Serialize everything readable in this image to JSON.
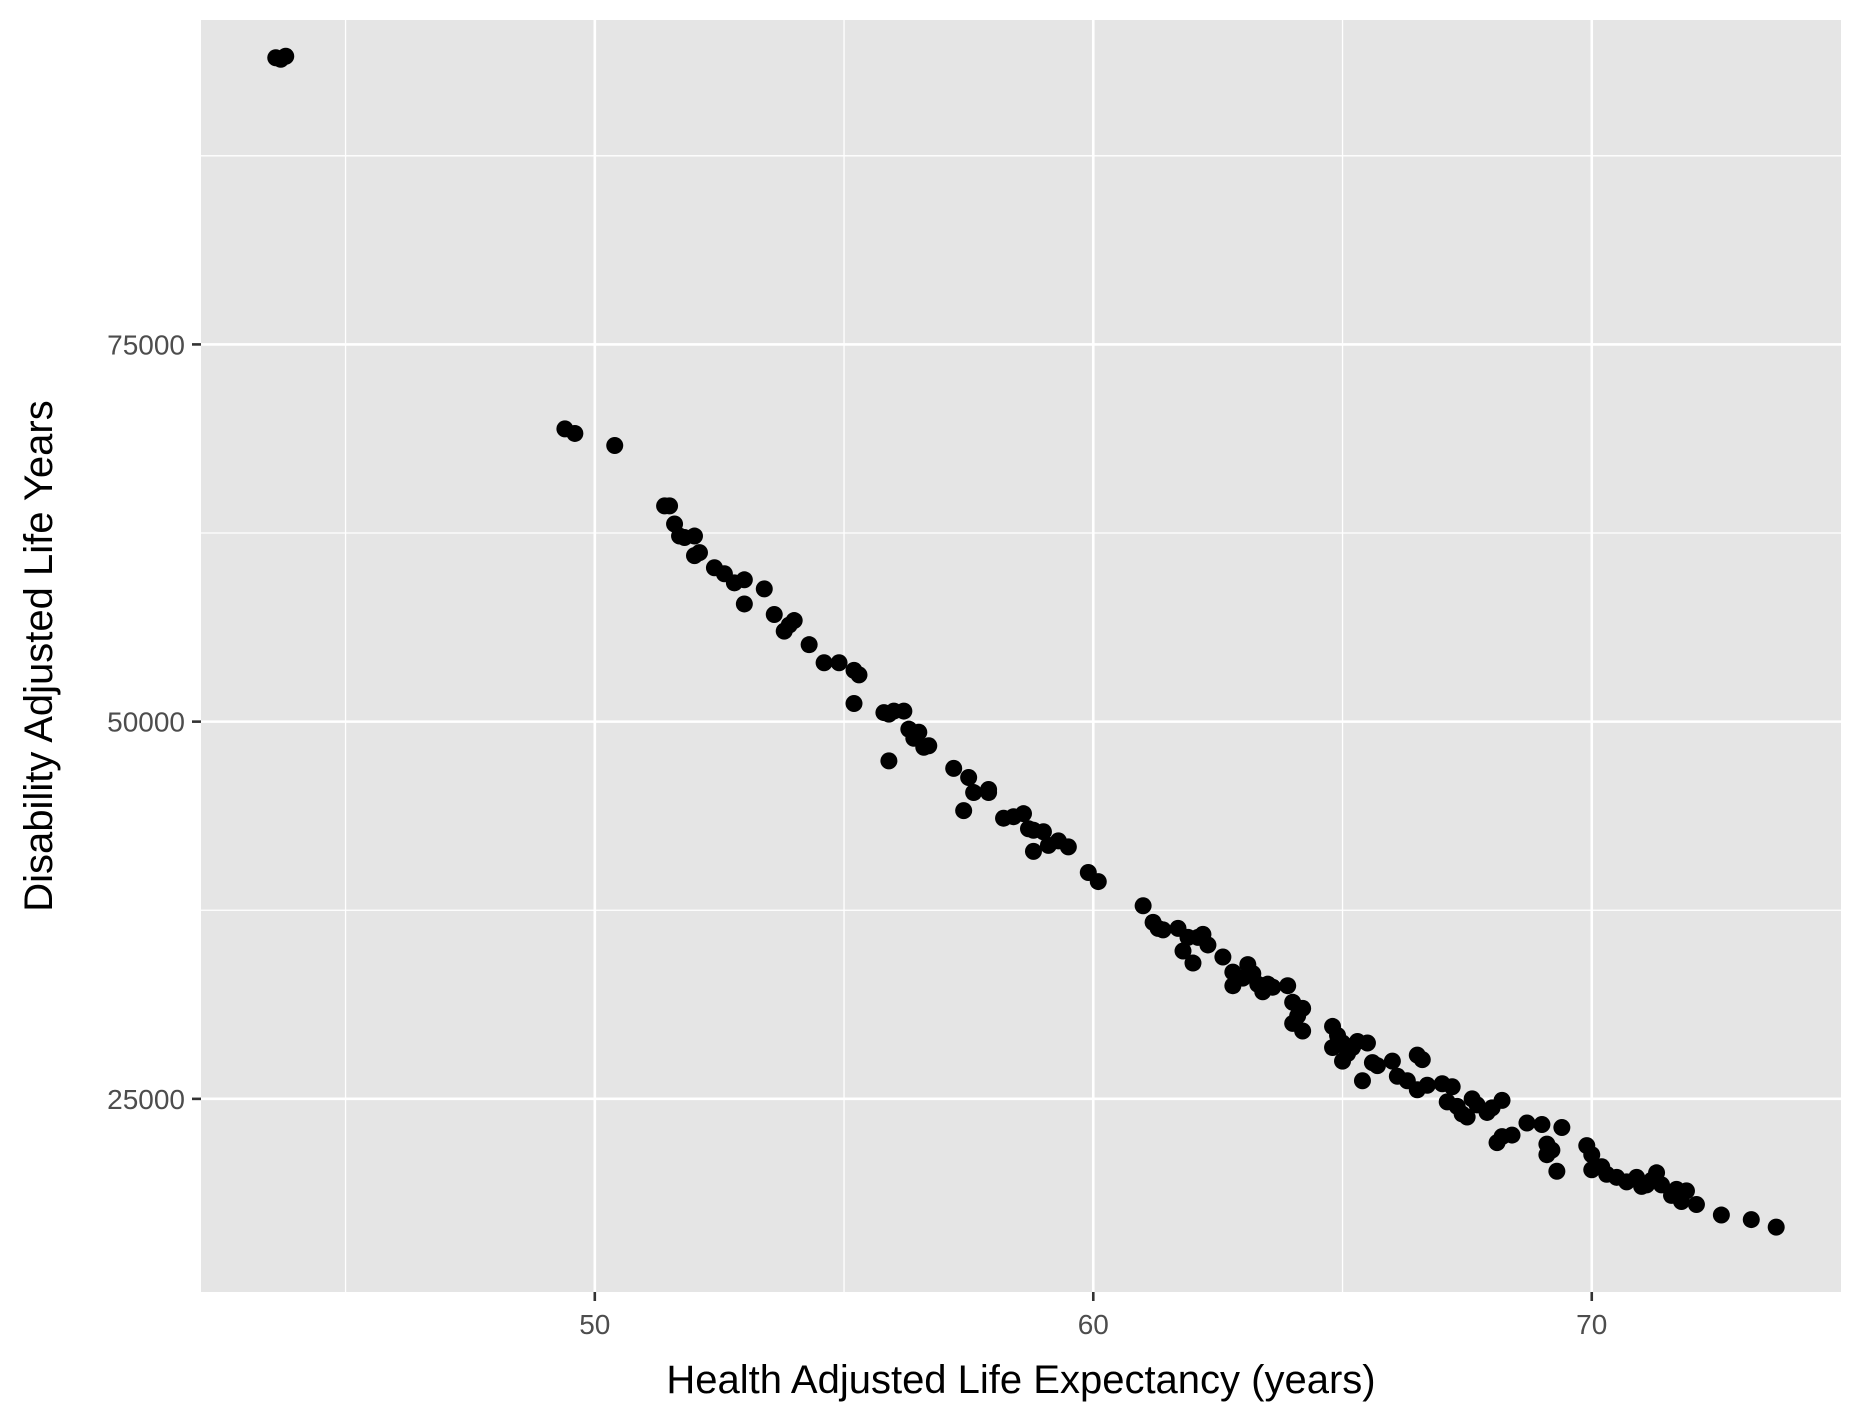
{
  "chart_data": {
    "type": "scatter",
    "title": "",
    "xlabel": "Health Adjusted Life Expectancy (years)",
    "ylabel": "Disability Adjusted Life Years",
    "xlim": [
      42.1,
      75.0
    ],
    "ylim": [
      12200,
      96500
    ],
    "x_ticks": [
      50,
      60,
      70
    ],
    "x_tick_labels": [
      "50",
      "60",
      "70"
    ],
    "x_minor_ticks": [
      45,
      55,
      65
    ],
    "y_ticks": [
      25000,
      50000,
      75000
    ],
    "y_tick_labels": [
      "25000",
      "50000",
      "75000"
    ],
    "y_minor_ticks": [
      37500,
      62500,
      87500
    ],
    "grid": true,
    "legend": "none",
    "point_color": "#000000",
    "panel_background": "#e5e5e5",
    "points": [
      [
        43.6,
        94000
      ],
      [
        43.8,
        94100
      ],
      [
        43.7,
        93900
      ],
      [
        49.4,
        69400
      ],
      [
        49.6,
        69100
      ],
      [
        50.4,
        68300
      ],
      [
        51.4,
        64300
      ],
      [
        51.5,
        64300
      ],
      [
        51.6,
        63100
      ],
      [
        51.7,
        62300
      ],
      [
        51.8,
        62200
      ],
      [
        52.0,
        62300
      ],
      [
        52.0,
        61000
      ],
      [
        52.1,
        61200
      ],
      [
        52.4,
        60200
      ],
      [
        52.6,
        59800
      ],
      [
        52.8,
        59200
      ],
      [
        53.0,
        59400
      ],
      [
        53.0,
        57800
      ],
      [
        53.4,
        58800
      ],
      [
        53.6,
        57100
      ],
      [
        53.8,
        56000
      ],
      [
        53.9,
        56400
      ],
      [
        54.0,
        56700
      ],
      [
        54.3,
        55100
      ],
      [
        54.6,
        53900
      ],
      [
        54.9,
        53900
      ],
      [
        55.2,
        53400
      ],
      [
        55.3,
        53100
      ],
      [
        55.2,
        51200
      ],
      [
        55.8,
        50600
      ],
      [
        55.9,
        50500
      ],
      [
        56.0,
        50700
      ],
      [
        55.9,
        47400
      ],
      [
        56.2,
        50700
      ],
      [
        56.3,
        49500
      ],
      [
        56.4,
        48900
      ],
      [
        56.5,
        49300
      ],
      [
        56.6,
        48300
      ],
      [
        56.7,
        48400
      ],
      [
        57.2,
        46900
      ],
      [
        57.5,
        46300
      ],
      [
        57.4,
        44100
      ],
      [
        57.6,
        45300
      ],
      [
        57.9,
        45500
      ],
      [
        57.9,
        45300
      ],
      [
        58.2,
        43600
      ],
      [
        58.4,
        43700
      ],
      [
        58.6,
        43900
      ],
      [
        58.7,
        42900
      ],
      [
        58.8,
        42800
      ],
      [
        58.8,
        41400
      ],
      [
        59.0,
        42700
      ],
      [
        59.1,
        41800
      ],
      [
        59.3,
        42100
      ],
      [
        59.5,
        41700
      ],
      [
        59.9,
        40000
      ],
      [
        60.1,
        39400
      ],
      [
        61.0,
        37800
      ],
      [
        61.2,
        36700
      ],
      [
        61.3,
        36300
      ],
      [
        61.4,
        36200
      ],
      [
        61.7,
        36300
      ],
      [
        61.8,
        34800
      ],
      [
        61.9,
        35700
      ],
      [
        62.0,
        34000
      ],
      [
        62.1,
        35700
      ],
      [
        62.2,
        35900
      ],
      [
        62.3,
        35200
      ],
      [
        62.6,
        34400
      ],
      [
        62.8,
        33400
      ],
      [
        62.8,
        32500
      ],
      [
        63.0,
        33000
      ],
      [
        63.1,
        33900
      ],
      [
        63.2,
        33300
      ],
      [
        63.3,
        32600
      ],
      [
        63.4,
        32100
      ],
      [
        63.5,
        32600
      ],
      [
        63.6,
        32400
      ],
      [
        63.9,
        32500
      ],
      [
        64.0,
        31400
      ],
      [
        64.1,
        30500
      ],
      [
        64.2,
        31000
      ],
      [
        64.0,
        30000
      ],
      [
        64.2,
        29500
      ],
      [
        64.8,
        29800
      ],
      [
        64.9,
        29200
      ],
      [
        65.0,
        28700
      ],
      [
        65.1,
        28000
      ],
      [
        65.0,
        27500
      ],
      [
        65.2,
        28400
      ],
      [
        64.8,
        28400
      ],
      [
        65.3,
        28800
      ],
      [
        65.5,
        28700
      ],
      [
        65.4,
        26200
      ],
      [
        65.6,
        27400
      ],
      [
        65.7,
        27200
      ],
      [
        66.0,
        27500
      ],
      [
        66.1,
        26500
      ],
      [
        66.3,
        26200
      ],
      [
        66.5,
        27900
      ],
      [
        66.6,
        27600
      ],
      [
        66.5,
        25600
      ],
      [
        66.7,
        25900
      ],
      [
        67.0,
        26000
      ],
      [
        67.1,
        24800
      ],
      [
        67.2,
        25800
      ],
      [
        67.3,
        24500
      ],
      [
        67.4,
        24000
      ],
      [
        67.5,
        23800
      ],
      [
        67.6,
        25000
      ],
      [
        67.7,
        24600
      ],
      [
        67.9,
        24100
      ],
      [
        68.0,
        24400
      ],
      [
        68.2,
        24900
      ],
      [
        68.1,
        22100
      ],
      [
        68.2,
        22500
      ],
      [
        68.4,
        22600
      ],
      [
        68.7,
        23400
      ],
      [
        69.0,
        23300
      ],
      [
        69.1,
        22000
      ],
      [
        69.1,
        21300
      ],
      [
        69.2,
        21600
      ],
      [
        69.3,
        20200
      ],
      [
        69.4,
        23100
      ],
      [
        69.9,
        21900
      ],
      [
        70.0,
        21300
      ],
      [
        70.0,
        20300
      ],
      [
        70.2,
        20500
      ],
      [
        70.3,
        20000
      ],
      [
        70.5,
        19800
      ],
      [
        70.7,
        19500
      ],
      [
        70.9,
        19800
      ],
      [
        71.0,
        19200
      ],
      [
        71.1,
        19300
      ],
      [
        71.2,
        19600
      ],
      [
        71.3,
        20100
      ],
      [
        71.4,
        19300
      ],
      [
        71.6,
        18600
      ],
      [
        71.7,
        19000
      ],
      [
        71.8,
        18200
      ],
      [
        71.9,
        18900
      ],
      [
        72.1,
        18000
      ],
      [
        72.6,
        17300
      ],
      [
        73.2,
        17000
      ],
      [
        73.7,
        16500
      ]
    ]
  }
}
